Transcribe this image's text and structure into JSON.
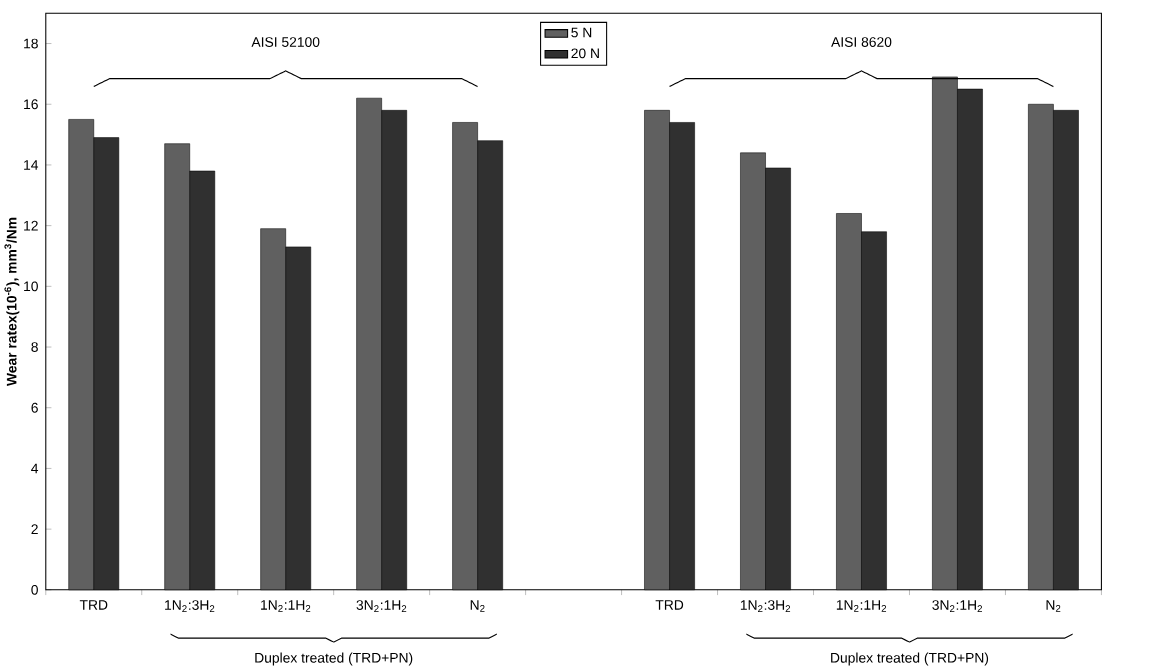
{
  "chart_data": {
    "type": "bar",
    "ylabel": "**Wear ratex(10$^{-6}$), mm$^{3}$/Nm**",
    "categories": [
      "TRD",
      "1N$_{2}$:3H$_{2}$",
      "1N$_{2}$:1H$_{2}$",
      "3N$_{2}$:1H$_{2}$",
      "N$_{2}$",
      null,
      "TRD",
      "1N$_{2}$:3H$_{2}$",
      "1N$_{2}$:1H$_{2}$",
      "3N$_{2}$:1H$_{2}$",
      "N$_{2}$"
    ],
    "series": [
      {
        "name": "5 N",
        "color": "#606060",
        "values": [
          15.5,
          14.7,
          11.9,
          16.2,
          15.4,
          null,
          15.8,
          14.4,
          12.4,
          16.9,
          16.0
        ]
      },
      {
        "name": "20 N",
        "color": "#303030",
        "values": [
          14.9,
          13.8,
          11.3,
          15.8,
          14.8,
          null,
          15.4,
          13.9,
          11.8,
          16.5,
          15.8
        ]
      }
    ],
    "ylim": [
      0,
      19
    ],
    "yticks": [
      0,
      2,
      4,
      6,
      8,
      10,
      12,
      14,
      16,
      18
    ],
    "legend": "top",
    "grid": false,
    "annotations": [
      "AISI 52100",
      "AISI 8620",
      "Duplex treated (TRD+PN)",
      "Duplex treated (TRD+PN)"
    ]
  }
}
